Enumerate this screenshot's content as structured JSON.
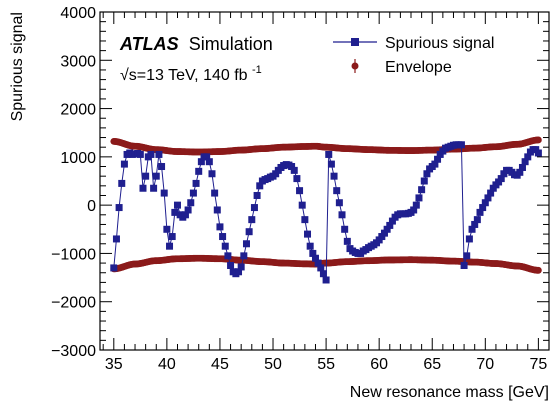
{
  "chart_data": {
    "type": "scatter",
    "xlabel": "New resonance mass [GeV]",
    "ylabel": "Spurious signal",
    "xlim": [
      33.7,
      76.0
    ],
    "ylim": [
      -3000,
      4000
    ],
    "x_ticks": [
      35,
      40,
      45,
      50,
      55,
      60,
      65,
      70,
      75
    ],
    "x_tick_labels": [
      "35",
      "40",
      "45",
      "50",
      "55",
      "60",
      "65",
      "70",
      "75"
    ],
    "y_ticks": [
      -3000,
      -2000,
      -1000,
      0,
      1000,
      2000,
      3000,
      4000
    ],
    "y_tick_labels": [
      "−3000",
      "−2000",
      "−1000",
      "0",
      "1000",
      "2000",
      "3000",
      "4000"
    ],
    "annotations": {
      "experiment": "ATLAS",
      "experiment_suffix": "Simulation",
      "energy_prefix": "√s=13 TeV, 140 fb",
      "energy_superscript": "-1"
    },
    "legend": {
      "position": "top-right",
      "entries": [
        "Spurious signal",
        "Envelope"
      ]
    },
    "colors": {
      "spurious": "#1f1f8f",
      "envelope": "#8b1a1a"
    },
    "series": [
      {
        "name": "Spurious signal",
        "points": [
          [
            35.0,
            -1300
          ],
          [
            35.25,
            -700
          ],
          [
            35.5,
            -50
          ],
          [
            35.75,
            450
          ],
          [
            36.0,
            850
          ],
          [
            36.25,
            1050
          ],
          [
            36.5,
            1080
          ],
          [
            36.75,
            1050
          ],
          [
            37.0,
            1060
          ],
          [
            37.25,
            1070
          ],
          [
            37.5,
            1050
          ],
          [
            37.75,
            350
          ],
          [
            38.0,
            600
          ],
          [
            38.25,
            1000
          ],
          [
            38.5,
            1050
          ],
          [
            38.75,
            350
          ],
          [
            39.0,
            600
          ],
          [
            39.25,
            1050
          ],
          [
            39.5,
            800
          ],
          [
            39.75,
            250
          ],
          [
            40.0,
            -500
          ],
          [
            40.25,
            -850
          ],
          [
            40.5,
            -650
          ],
          [
            40.75,
            -150
          ],
          [
            41.0,
            0
          ],
          [
            41.25,
            -200
          ],
          [
            41.5,
            -250
          ],
          [
            41.75,
            -200
          ],
          [
            42.0,
            -100
          ],
          [
            42.25,
            50
          ],
          [
            42.5,
            250
          ],
          [
            42.75,
            450
          ],
          [
            43.0,
            700
          ],
          [
            43.25,
            900
          ],
          [
            43.5,
            1000
          ],
          [
            43.75,
            1000
          ],
          [
            44.0,
            900
          ],
          [
            44.25,
            650
          ],
          [
            44.5,
            250
          ],
          [
            44.75,
            -100
          ],
          [
            45.0,
            -450
          ],
          [
            45.25,
            -650
          ],
          [
            45.5,
            -850
          ],
          [
            45.75,
            -1050
          ],
          [
            46.0,
            -1250
          ],
          [
            46.25,
            -1380
          ],
          [
            46.5,
            -1420
          ],
          [
            46.75,
            -1380
          ],
          [
            47.0,
            -1280
          ],
          [
            47.25,
            -1050
          ],
          [
            47.5,
            -800
          ],
          [
            47.75,
            -550
          ],
          [
            48.0,
            -300
          ],
          [
            48.25,
            -50
          ],
          [
            48.5,
            200
          ],
          [
            48.75,
            400
          ],
          [
            49.0,
            500
          ],
          [
            49.25,
            530
          ],
          [
            49.5,
            550
          ],
          [
            49.75,
            580
          ],
          [
            50.0,
            600
          ],
          [
            50.25,
            650
          ],
          [
            50.5,
            720
          ],
          [
            50.75,
            780
          ],
          [
            51.0,
            820
          ],
          [
            51.25,
            840
          ],
          [
            51.5,
            830
          ],
          [
            51.75,
            800
          ],
          [
            52.0,
            720
          ],
          [
            52.25,
            550
          ],
          [
            52.5,
            300
          ],
          [
            52.75,
            0
          ],
          [
            53.0,
            -300
          ],
          [
            53.25,
            -600
          ],
          [
            53.5,
            -850
          ],
          [
            53.75,
            -1000
          ],
          [
            54.0,
            -1100
          ],
          [
            54.25,
            -1200
          ],
          [
            54.5,
            -1300
          ],
          [
            54.75,
            -1420
          ],
          [
            55.0,
            -1550
          ],
          [
            55.25,
            1050
          ],
          [
            55.5,
            850
          ],
          [
            55.75,
            600
          ],
          [
            56.0,
            300
          ],
          [
            56.25,
            50
          ],
          [
            56.5,
            -200
          ],
          [
            56.75,
            -500
          ],
          [
            57.0,
            -750
          ],
          [
            57.25,
            -900
          ],
          [
            57.5,
            -950
          ],
          [
            57.75,
            -980
          ],
          [
            58.0,
            -1000
          ],
          [
            58.25,
            -1000
          ],
          [
            58.5,
            -950
          ],
          [
            58.75,
            -920
          ],
          [
            59.0,
            -880
          ],
          [
            59.25,
            -850
          ],
          [
            59.5,
            -820
          ],
          [
            59.75,
            -780
          ],
          [
            60.0,
            -720
          ],
          [
            60.25,
            -650
          ],
          [
            60.5,
            -580
          ],
          [
            60.75,
            -500
          ],
          [
            61.0,
            -420
          ],
          [
            61.25,
            -330
          ],
          [
            61.5,
            -250
          ],
          [
            61.75,
            -200
          ],
          [
            62.0,
            -180
          ],
          [
            62.25,
            -180
          ],
          [
            62.5,
            -180
          ],
          [
            62.75,
            -170
          ],
          [
            63.0,
            -150
          ],
          [
            63.25,
            -100
          ],
          [
            63.5,
            0
          ],
          [
            63.75,
            150
          ],
          [
            64.0,
            320
          ],
          [
            64.25,
            500
          ],
          [
            64.5,
            650
          ],
          [
            64.75,
            750
          ],
          [
            65.0,
            800
          ],
          [
            65.25,
            850
          ],
          [
            65.5,
            950
          ],
          [
            65.75,
            1050
          ],
          [
            66.0,
            1120
          ],
          [
            66.25,
            1180
          ],
          [
            66.5,
            1200
          ],
          [
            66.75,
            1220
          ],
          [
            67.0,
            1240
          ],
          [
            67.25,
            1250
          ],
          [
            67.5,
            1250
          ],
          [
            67.75,
            1250
          ],
          [
            68.0,
            -1250
          ],
          [
            68.25,
            -1050
          ],
          [
            68.5,
            -700
          ],
          [
            68.75,
            -500
          ],
          [
            69.0,
            -400
          ],
          [
            69.25,
            -300
          ],
          [
            69.5,
            -150
          ],
          [
            69.75,
            -50
          ],
          [
            70.0,
            50
          ],
          [
            70.25,
            150
          ],
          [
            70.5,
            250
          ],
          [
            70.75,
            350
          ],
          [
            71.0,
            420
          ],
          [
            71.25,
            480
          ],
          [
            71.5,
            550
          ],
          [
            71.75,
            650
          ],
          [
            72.0,
            720
          ],
          [
            72.25,
            720
          ],
          [
            72.5,
            680
          ],
          [
            72.75,
            630
          ],
          [
            73.0,
            620
          ],
          [
            73.25,
            680
          ],
          [
            73.5,
            780
          ],
          [
            73.75,
            900
          ],
          [
            74.0,
            1000
          ],
          [
            74.25,
            1100
          ],
          [
            74.5,
            1150
          ],
          [
            74.75,
            1150
          ],
          [
            75.0,
            1080
          ]
        ]
      },
      {
        "name": "Envelope",
        "upper": [
          [
            35,
            1320
          ],
          [
            37,
            1220
          ],
          [
            39,
            1150
          ],
          [
            41,
            1110
          ],
          [
            43,
            1100
          ],
          [
            45,
            1110
          ],
          [
            47,
            1140
          ],
          [
            49,
            1170
          ],
          [
            51,
            1200
          ],
          [
            53,
            1215
          ],
          [
            54,
            1220
          ],
          [
            55,
            1200
          ],
          [
            57,
            1170
          ],
          [
            59,
            1150
          ],
          [
            61,
            1135
          ],
          [
            63,
            1130
          ],
          [
            65,
            1140
          ],
          [
            67,
            1160
          ],
          [
            69,
            1180
          ],
          [
            71,
            1210
          ],
          [
            73,
            1260
          ],
          [
            75,
            1350
          ]
        ],
        "lower": [
          [
            35,
            -1320
          ],
          [
            37,
            -1220
          ],
          [
            39,
            -1150
          ],
          [
            41,
            -1110
          ],
          [
            43,
            -1100
          ],
          [
            45,
            -1110
          ],
          [
            47,
            -1140
          ],
          [
            49,
            -1170
          ],
          [
            51,
            -1200
          ],
          [
            53,
            -1215
          ],
          [
            54,
            -1220
          ],
          [
            55,
            -1200
          ],
          [
            57,
            -1170
          ],
          [
            59,
            -1150
          ],
          [
            61,
            -1135
          ],
          [
            63,
            -1130
          ],
          [
            65,
            -1140
          ],
          [
            67,
            -1160
          ],
          [
            69,
            -1180
          ],
          [
            71,
            -1210
          ],
          [
            73,
            -1260
          ],
          [
            75,
            -1350
          ]
        ]
      }
    ]
  }
}
